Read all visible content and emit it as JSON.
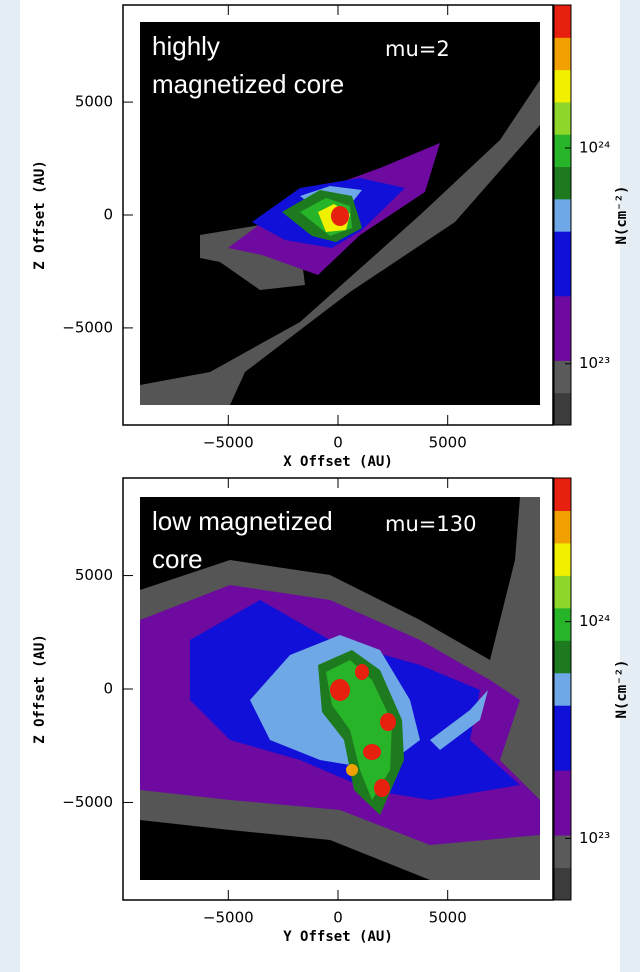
{
  "chart_data": [
    {
      "type": "image",
      "title": [
        "highly",
        "magnetized core"
      ],
      "annotation": "mu=2",
      "xlabel": "X Offset (AU)",
      "ylabel": "Z Offset (AU)",
      "xlim": [
        -9800,
        9800
      ],
      "ylim": [
        -9300,
        9300
      ],
      "xticks": [
        {
          "value": -5000,
          "label": "−5000"
        },
        0,
        5000
      ],
      "yticks": [
        {
          "value": -5000,
          "label": "−5000"
        },
        0,
        5000
      ],
      "colorbar": {
        "label": "N(cm⁻²)",
        "log": true,
        "lim": [
          5.2e+22,
          4.6e+24
        ],
        "ticks": [
          {
            "value": 1e+23,
            "label": "10²³"
          },
          {
            "value": 1e+24,
            "label": "10²⁴"
          }
        ],
        "colors": [
          "#3c3c3c",
          "#5a5a5a",
          "#6e0aa0",
          "#6e0aa0",
          "#1010d8",
          "#1010d8",
          "#6ea8e6",
          "#1e7a1e",
          "#28b428",
          "#8fd62a",
          "#f0f000",
          "#f0a000",
          "#e82010"
        ]
      }
    },
    {
      "type": "image",
      "title": [
        "low magnetized",
        "core"
      ],
      "annotation": "mu=130",
      "xlabel": "Y Offset (AU)",
      "ylabel": "Z Offset (AU)",
      "xlim": [
        -9800,
        9800
      ],
      "ylim": [
        -9300,
        9300
      ],
      "xticks": [
        {
          "value": -5000,
          "label": "−5000"
        },
        0,
        5000
      ],
      "yticks": [
        {
          "value": -5000,
          "label": "−5000"
        },
        0,
        5000
      ],
      "colorbar": {
        "label": "N(cm⁻²)",
        "log": true,
        "lim": [
          5.2e+22,
          4.6e+24
        ],
        "ticks": [
          {
            "value": 1e+23,
            "label": "10²³"
          },
          {
            "value": 1e+24,
            "label": "10²⁴"
          }
        ],
        "colors": [
          "#3c3c3c",
          "#5a5a5a",
          "#6e0aa0",
          "#6e0aa0",
          "#1010d8",
          "#1010d8",
          "#6ea8e6",
          "#1e7a1e",
          "#28b428",
          "#8fd62a",
          "#f0f000",
          "#f0a000",
          "#e82010"
        ]
      }
    }
  ]
}
